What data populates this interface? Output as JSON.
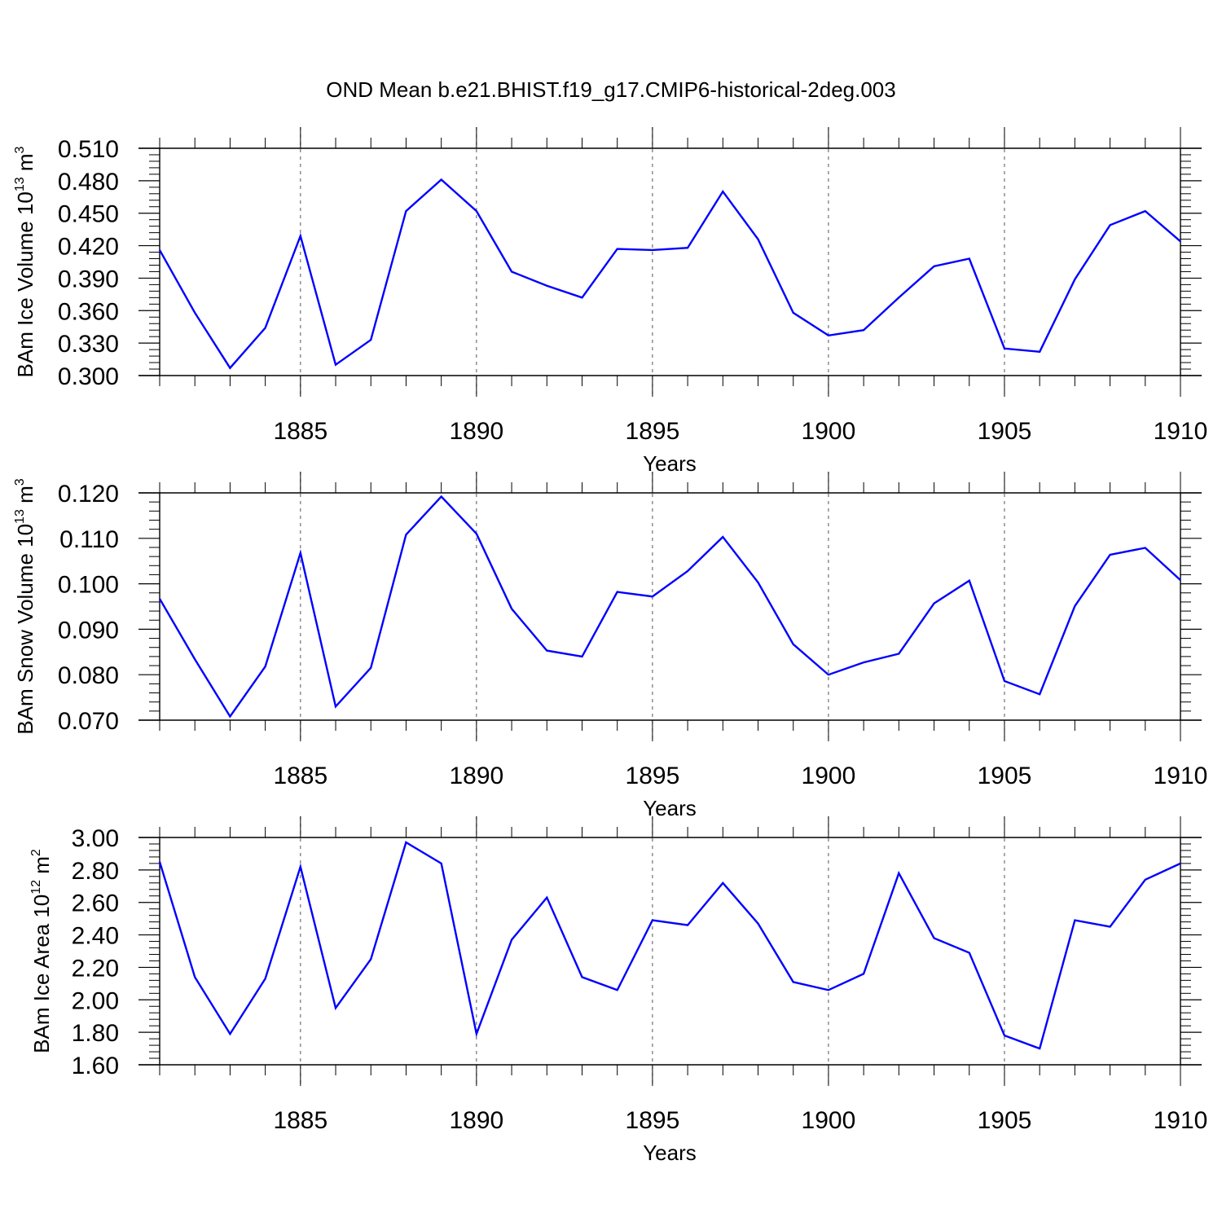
{
  "title": "OND Mean b.e21.BHIST.f19_g17.CMIP6-historical-2deg.003",
  "colors": {
    "line": "#0000ff",
    "axis": "#000000",
    "grid": "#555555"
  },
  "chart_data": [
    {
      "type": "line",
      "ylabel_main": "BAm Ice Volume 10",
      "ylabel_exp": "13",
      "ylabel_unit": " m",
      "ylabel_unit_exp": "3",
      "xlabel": "Years",
      "xlim": [
        1881,
        1910
      ],
      "ylim": [
        0.3,
        0.51
      ],
      "xticks": [
        1885,
        1890,
        1895,
        1900,
        1905,
        1910
      ],
      "xtick_labels": [
        "1885",
        "1890",
        "1895",
        "1900",
        "1905",
        "1910"
      ],
      "yticks": [
        0.3,
        0.33,
        0.36,
        0.39,
        0.42,
        0.45,
        0.48,
        0.51
      ],
      "ytick_labels": [
        "0.300",
        "0.330",
        "0.360",
        "0.390",
        "0.420",
        "0.450",
        "0.480",
        "0.510"
      ],
      "x": [
        1881,
        1882,
        1883,
        1884,
        1885,
        1886,
        1887,
        1888,
        1889,
        1890,
        1891,
        1892,
        1893,
        1894,
        1895,
        1896,
        1897,
        1898,
        1899,
        1900,
        1901,
        1902,
        1903,
        1904,
        1905,
        1906,
        1907,
        1908,
        1909,
        1910
      ],
      "series": [
        {
          "name": "BAm Ice Volume",
          "values": [
            0.416,
            0.358,
            0.307,
            0.344,
            0.429,
            0.31,
            0.333,
            0.452,
            0.481,
            0.452,
            0.396,
            0.383,
            0.372,
            0.417,
            0.416,
            0.418,
            0.47,
            0.426,
            0.358,
            0.337,
            0.342,
            0.372,
            0.401,
            0.408,
            0.325,
            0.322,
            0.389,
            0.439,
            0.452,
            0.424
          ]
        }
      ]
    },
    {
      "type": "line",
      "ylabel_main": "BAm Snow Volume 10",
      "ylabel_exp": "13",
      "ylabel_unit": " m",
      "ylabel_unit_exp": "3",
      "xlabel": "Years",
      "xlim": [
        1881,
        1910
      ],
      "ylim": [
        0.07,
        0.12
      ],
      "xticks": [
        1885,
        1890,
        1895,
        1900,
        1905,
        1910
      ],
      "xtick_labels": [
        "1885",
        "1890",
        "1895",
        "1900",
        "1905",
        "1910"
      ],
      "yticks": [
        0.07,
        0.08,
        0.09,
        0.1,
        0.11,
        0.12
      ],
      "ytick_labels": [
        "0.070",
        "0.080",
        "0.090",
        "0.100",
        "0.110",
        "0.120"
      ],
      "x": [
        1881,
        1882,
        1883,
        1884,
        1885,
        1886,
        1887,
        1888,
        1889,
        1890,
        1891,
        1892,
        1893,
        1894,
        1895,
        1896,
        1897,
        1898,
        1899,
        1900,
        1901,
        1902,
        1903,
        1904,
        1905,
        1906,
        1907,
        1908,
        1909,
        1910
      ],
      "series": [
        {
          "name": "BAm Snow Volume",
          "values": [
            0.0967,
            0.0834,
            0.0708,
            0.0818,
            0.1068,
            0.073,
            0.0815,
            0.1108,
            0.1192,
            0.111,
            0.0945,
            0.0853,
            0.084,
            0.0982,
            0.0972,
            0.1028,
            0.1103,
            0.1003,
            0.0867,
            0.08,
            0.0827,
            0.0846,
            0.0957,
            0.1007,
            0.0786,
            0.0757,
            0.0951,
            0.1064,
            0.1079,
            0.1008
          ]
        }
      ]
    },
    {
      "type": "line",
      "ylabel_main": "BAm Ice Area 10",
      "ylabel_exp": "12",
      "ylabel_unit": " m",
      "ylabel_unit_exp": "2",
      "xlabel": "Years",
      "xlim": [
        1881,
        1910
      ],
      "ylim": [
        1.6,
        3.0
      ],
      "xticks": [
        1885,
        1890,
        1895,
        1900,
        1905,
        1910
      ],
      "xtick_labels": [
        "1885",
        "1890",
        "1895",
        "1900",
        "1905",
        "1910"
      ],
      "yticks": [
        1.6,
        1.8,
        2.0,
        2.2,
        2.4,
        2.6,
        2.8,
        3.0
      ],
      "ytick_labels": [
        "1.60",
        "1.80",
        "2.00",
        "2.20",
        "2.40",
        "2.60",
        "2.80",
        "3.00"
      ],
      "x": [
        1881,
        1882,
        1883,
        1884,
        1885,
        1886,
        1887,
        1888,
        1889,
        1890,
        1891,
        1892,
        1893,
        1894,
        1895,
        1896,
        1897,
        1898,
        1899,
        1900,
        1901,
        1902,
        1903,
        1904,
        1905,
        1906,
        1907,
        1908,
        1909,
        1910
      ],
      "series": [
        {
          "name": "BAm Ice Area",
          "values": [
            2.85,
            2.14,
            1.79,
            2.13,
            2.82,
            1.95,
            2.25,
            2.97,
            2.84,
            1.79,
            2.37,
            2.63,
            2.14,
            2.06,
            2.49,
            2.46,
            2.72,
            2.47,
            2.11,
            2.06,
            2.16,
            2.78,
            2.38,
            2.29,
            1.78,
            1.7,
            2.49,
            2.45,
            2.74,
            2.84
          ]
        }
      ]
    }
  ]
}
